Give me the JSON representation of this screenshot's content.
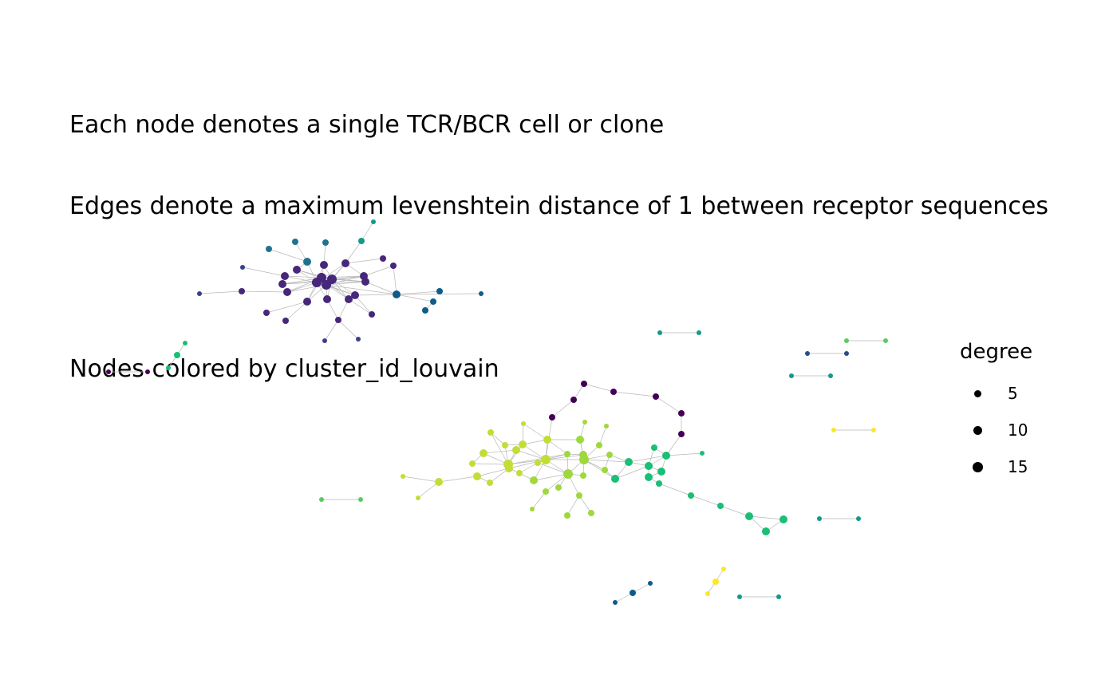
{
  "title": {
    "lines": [
      "Each node denotes a single TCR/BCR cell or clone",
      "Edges denote a maximum levenshtein distance of 1 between receptor sequences",
      "",
      "Nodes colored by cluster_id_louvain"
    ]
  },
  "legend": {
    "title": "degree",
    "items": [
      {
        "label": "5",
        "value": 5
      },
      {
        "label": "10",
        "value": 10
      },
      {
        "label": "15",
        "value": 15
      }
    ]
  },
  "colors": {
    "edge": "#b8b8b8",
    "dark_purple": "#440154",
    "purple": "#46277a",
    "indigo": "#3b3f88",
    "navy": "#2c4a87",
    "blue": "#0d5c8a",
    "teal_blue": "#1f738e",
    "teal": "#139a8c",
    "green": "#18bf74",
    "light_green": "#5ec962",
    "lime": "#9fd83c",
    "yellow_green": "#c5dc35",
    "yellow": "#fde725"
  }
}
